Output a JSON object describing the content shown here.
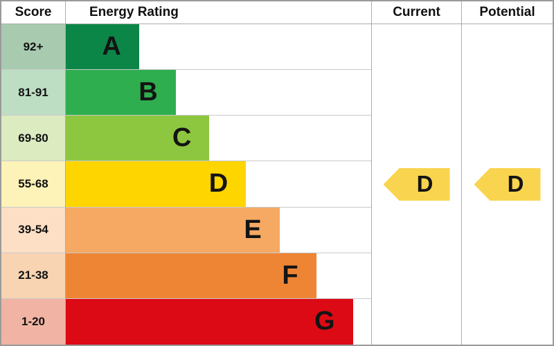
{
  "header": {
    "score": "Score",
    "energy_rating": "Energy Rating",
    "current": "Current",
    "potential": "Potential"
  },
  "bands": [
    {
      "letter": "A",
      "score": "92+",
      "color": "#0c8647",
      "tint": "#a8cbb0",
      "width_pct": 24
    },
    {
      "letter": "B",
      "score": "81-91",
      "color": "#2eae4e",
      "tint": "#bedec4",
      "width_pct": 36
    },
    {
      "letter": "C",
      "score": "69-80",
      "color": "#8dc63f",
      "tint": "#dcebc0",
      "width_pct": 47
    },
    {
      "letter": "D",
      "score": "55-68",
      "color": "#ffd500",
      "tint": "#fdf2b7",
      "width_pct": 59
    },
    {
      "letter": "E",
      "score": "39-54",
      "color": "#f6a963",
      "tint": "#fcdfc4",
      "width_pct": 70
    },
    {
      "letter": "F",
      "score": "21-38",
      "color": "#ee8534",
      "tint": "#f9d4b2",
      "width_pct": 82
    },
    {
      "letter": "G",
      "score": "1-20",
      "color": "#dc0a15",
      "tint": "#f1b4a4",
      "width_pct": 94
    }
  ],
  "current": {
    "letter": "D",
    "arrow_color": "#f9d44e"
  },
  "potential": {
    "letter": "D",
    "arrow_color": "#f9d44e"
  },
  "chart_data": {
    "type": "bar",
    "title": "Energy Rating",
    "categories": [
      "A",
      "B",
      "C",
      "D",
      "E",
      "F",
      "G"
    ],
    "score_ranges": [
      "92+",
      "81-91",
      "69-80",
      "55-68",
      "39-54",
      "21-38",
      "1-20"
    ],
    "values": [
      24,
      36,
      47,
      59,
      70,
      82,
      94
    ],
    "value_unit": "relative bar width %",
    "band_colors": [
      "#0c8647",
      "#2eae4e",
      "#8dc63f",
      "#ffd500",
      "#f6a963",
      "#ee8534",
      "#dc0a15"
    ],
    "current": "D",
    "potential": "D",
    "legend_position": "none",
    "grid": false
  }
}
